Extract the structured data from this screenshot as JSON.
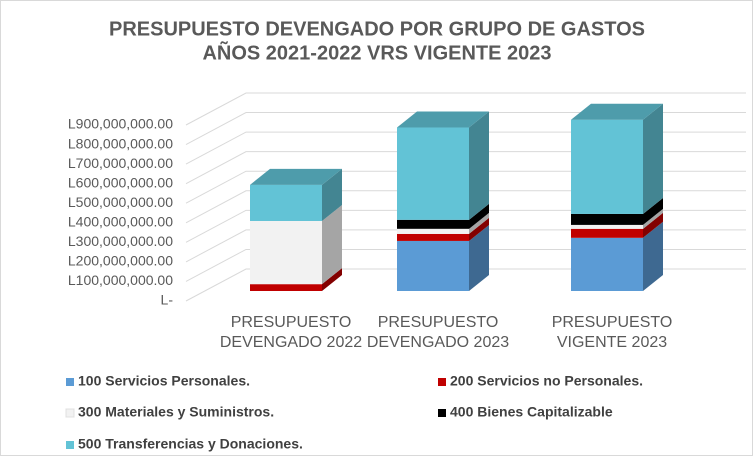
{
  "chart_data": {
    "type": "bar3d_stacked",
    "title": "PRESUPUESTO DEVENGADO POR GRUPO DE GASTOS",
    "subtitle": "AÑOS 2021-2022 VRS VIGENTE 2023",
    "categories": [
      "PRESUPUESTO DEVENGADO 2022",
      "PRESUPUESTO DEVENGADO 2023",
      "PRESUPUESTO VIGENTE 2023"
    ],
    "series": [
      {
        "name": "100 Servicios Personales.",
        "color": "#5b9bd5",
        "values": [
          0,
          256000000,
          272000000
        ]
      },
      {
        "name": "200 Servicios no Personales.",
        "color": "#c00000",
        "values": [
          35000000,
          36000000,
          46000000
        ]
      },
      {
        "name": "300 Materiales y Suministros.",
        "color": "#f2f2f2",
        "values": [
          323000000,
          26000000,
          20000000
        ]
      },
      {
        "name": "400 Bienes Capitalizable",
        "color": "#000000",
        "values": [
          0,
          46000000,
          56000000
        ]
      },
      {
        "name": "500 Transferencias y Donaciones.",
        "color": "#62c3d6",
        "values": [
          185000000,
          472000000,
          482000000
        ]
      }
    ],
    "ylim": [
      0,
      900000000
    ],
    "yticks": [
      {
        "value": 0,
        "label": "L-"
      },
      {
        "value": 100000000,
        "label": "L100,000,000.00"
      },
      {
        "value": 200000000,
        "label": "L200,000,000.00"
      },
      {
        "value": 300000000,
        "label": "L300,000,000.00"
      },
      {
        "value": 400000000,
        "label": "L400,000,000.00"
      },
      {
        "value": 500000000,
        "label": "L500,000,000.00"
      },
      {
        "value": 600000000,
        "label": "L600,000,000.00"
      },
      {
        "value": 700000000,
        "label": "L700,000,000.00"
      },
      {
        "value": 800000000,
        "label": "L800,000,000.00"
      },
      {
        "value": 900000000,
        "label": "L900,000,000.00"
      }
    ],
    "grid": true
  }
}
